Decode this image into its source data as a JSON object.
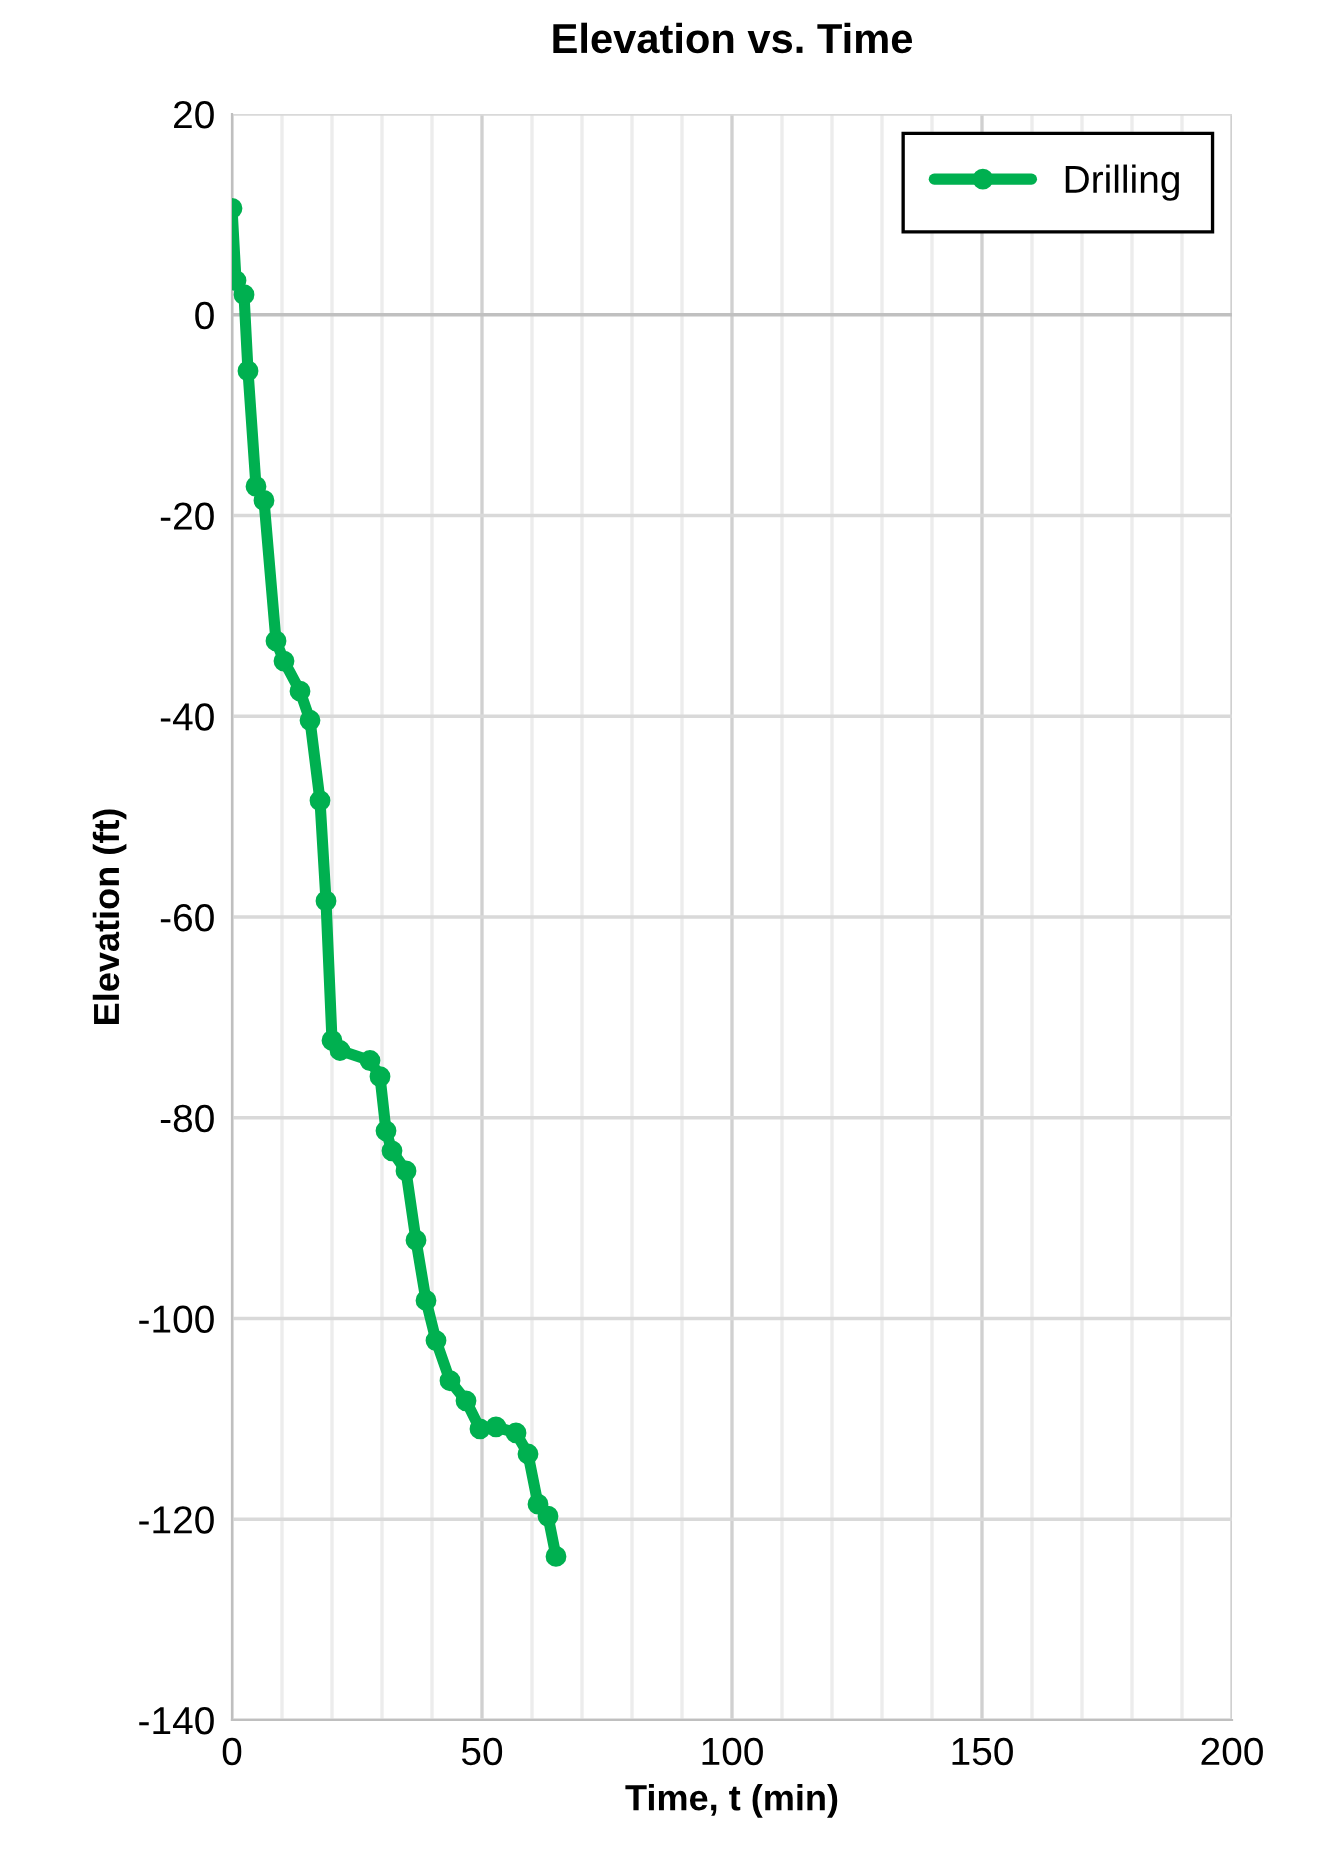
{
  "chart_data": {
    "type": "line",
    "title": "Elevation vs. Time",
    "xlabel": "Time, t (min)",
    "ylabel": "Elevation (ft)",
    "x": [
      0,
      0.8,
      2.4,
      3.2,
      4.8,
      6.4,
      8.8,
      10.4,
      13.6,
      15.6,
      17.6,
      18.8,
      20,
      21.6,
      27.6,
      29.6,
      30.8,
      32,
      34.8,
      36.8,
      38.8,
      40.8,
      43.6,
      46.8,
      49.6,
      51,
      52.8,
      56.8,
      59.2,
      61.2,
      63.2,
      64.8
    ],
    "series": [
      {
        "name": "Drilling",
        "color": "#00b050",
        "values": [
          10.6,
          3.4,
          2,
          -5.6,
          -17.1,
          -18.5,
          -32.5,
          -34.5,
          -37.5,
          -40.4,
          -48.4,
          -58.4,
          -72.3,
          -73.3,
          -74.3,
          -75.9,
          -81.3,
          -83.3,
          -85.3,
          -92.2,
          -98.2,
          -102.2,
          -106.2,
          -108.2,
          -111,
          null,
          -110.8,
          -111.4,
          -113.5,
          -118.5,
          -119.7,
          -123.7
        ]
      }
    ],
    "xlim": [
      0,
      200
    ],
    "ylim": [
      -140,
      20
    ],
    "xticks": [
      0,
      {
        "value": 10,
        "label": null
      },
      {
        "value": 20,
        "label": null
      },
      {
        "value": 30,
        "label": null
      },
      {
        "value": 40,
        "label": null
      },
      50,
      {
        "value": 60,
        "label": null
      },
      {
        "value": 70,
        "label": null
      },
      {
        "value": 80,
        "label": null
      },
      {
        "value": 90,
        "label": null
      },
      100,
      {
        "value": 110,
        "label": null
      },
      {
        "value": 120,
        "label": null
      },
      {
        "value": 130,
        "label": null
      },
      {
        "value": 140,
        "label": null
      },
      150,
      {
        "value": 160,
        "label": null
      },
      {
        "value": 170,
        "label": null
      },
      {
        "value": 180,
        "label": null
      },
      {
        "value": 190,
        "label": null
      },
      200
    ],
    "yticks": [
      -140,
      -120,
      -100,
      -80,
      -60,
      -40,
      -20,
      0,
      20
    ],
    "grid": true,
    "legend": "top right",
    "marker": "circle",
    "line_style": "solid"
  }
}
